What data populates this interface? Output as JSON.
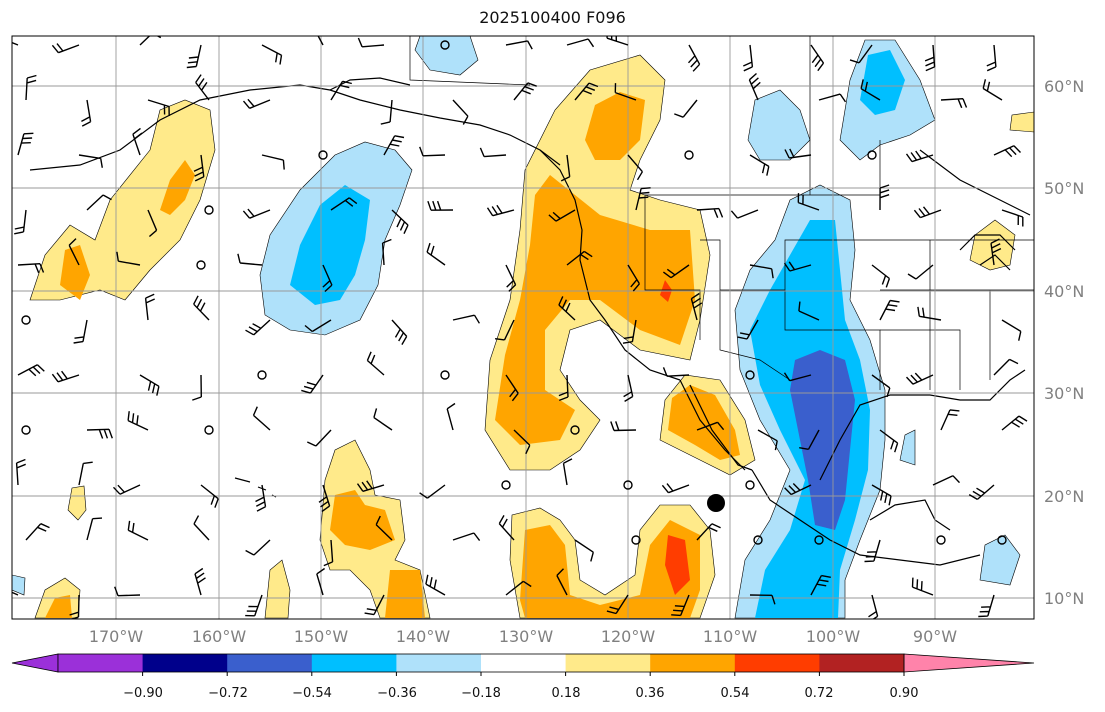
{
  "title": "2025100400 F096",
  "latitude_labels": [
    "60°N",
    "50°N",
    "40°N",
    "30°N",
    "20°N",
    "10°N"
  ],
  "longitude_labels": [
    "170°W",
    "160°W",
    "150°W",
    "140°W",
    "130°W",
    "120°W",
    "110°W",
    "100°W",
    "90°W"
  ],
  "colorbar": {
    "ticks": [
      "−0.90",
      "−0.72",
      "−0.54",
      "−0.36",
      "−0.18",
      "0.18",
      "0.36",
      "0.54",
      "0.72",
      "0.90"
    ],
    "colors": [
      "#9b30d9",
      "#00008b",
      "#3a5fcd",
      "#00bfff",
      "#afe1fa",
      "#ffffff",
      "#ffea8a",
      "#ffa500",
      "#ff3d00",
      "#b22222",
      "#ff83aa"
    ]
  },
  "colors": {
    "land_line": "#000000",
    "grid": "#999999",
    "positive_light": "#ffea8a",
    "positive_mid": "#ffa500",
    "positive_high": "#ff3d00",
    "negative_light": "#afe1fa",
    "negative_mid": "#00bfff",
    "negative_high": "#3a5fcd"
  },
  "marker": "black-dot"
}
